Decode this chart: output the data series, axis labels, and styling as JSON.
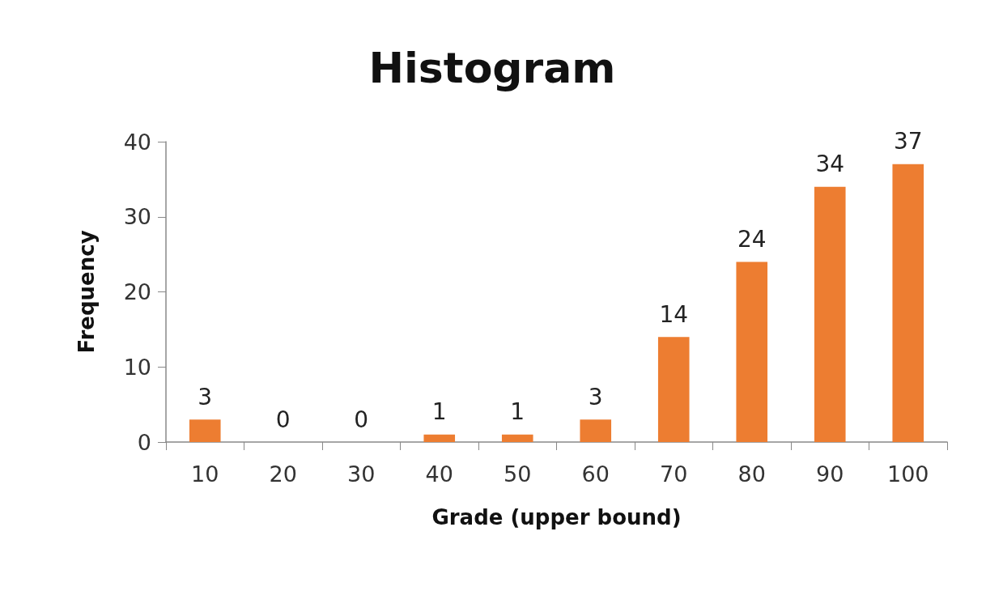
{
  "chart_data": {
    "type": "bar",
    "title": "Histogram",
    "xlabel": "Grade (upper bound)",
    "ylabel": "Frequency",
    "categories": [
      "10",
      "20",
      "30",
      "40",
      "50",
      "60",
      "70",
      "80",
      "90",
      "100"
    ],
    "values": [
      3,
      0,
      0,
      1,
      1,
      3,
      14,
      24,
      34,
      37
    ],
    "color": "#ed7d31",
    "ylim": [
      0,
      40
    ],
    "yticks": [
      0,
      10,
      20,
      30,
      40
    ],
    "grid": false,
    "data_labels": true
  }
}
